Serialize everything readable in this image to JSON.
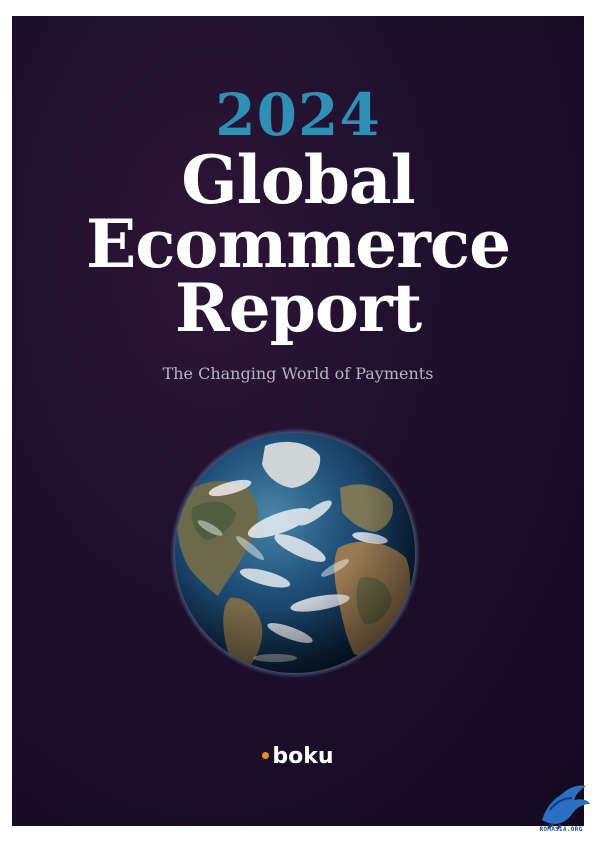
{
  "cover": {
    "year": "2024",
    "title_lines": [
      "Global",
      "Ecommerce",
      "Report"
    ],
    "subtitle": "The Changing World of Payments",
    "brand": "boku",
    "colors": {
      "background": "#1e0f2c",
      "year": "#2f8fb5",
      "title": "#ffffff",
      "subtitle": "#b9b3c4",
      "brand_dot": "#f08a2c"
    }
  },
  "watermark": {
    "text": "ROMASIA.ORG",
    "icon": "bird-icon"
  }
}
